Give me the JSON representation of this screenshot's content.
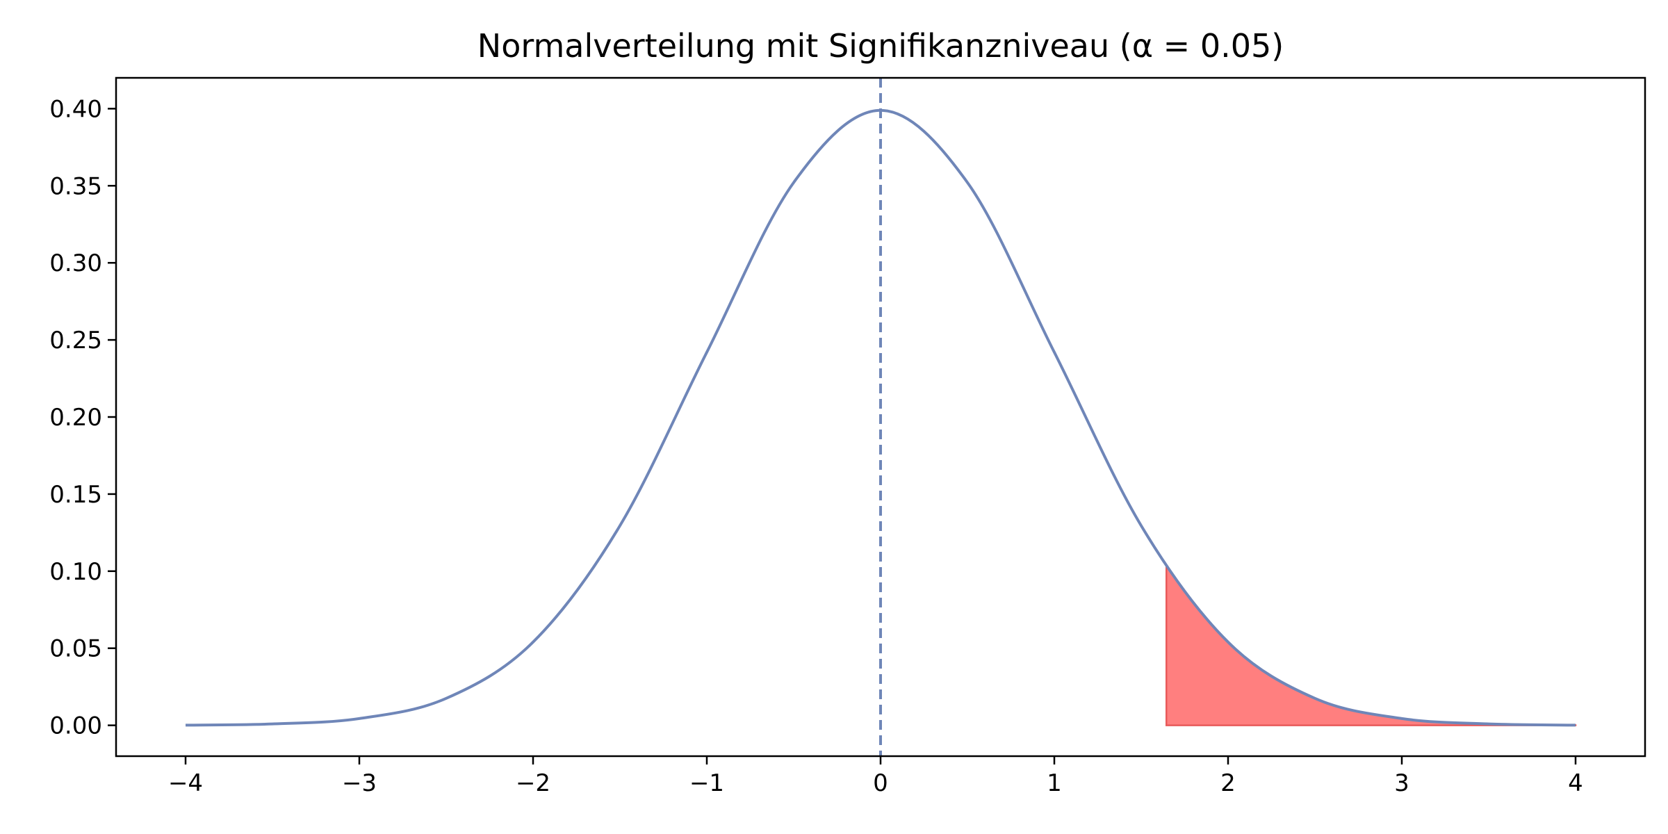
{
  "chart_data": {
    "type": "line",
    "title": "Normalverteilung mit Signifikanzniveau (α = 0.05)",
    "xlabel": "",
    "ylabel": "",
    "xlim": [
      -4.4,
      4.4
    ],
    "ylim": [
      -0.02,
      0.42
    ],
    "grid": false,
    "x_ticks": [
      -4,
      -3,
      -2,
      -1,
      0,
      1,
      2,
      3,
      4
    ],
    "x_tick_labels": [
      "−4",
      "−3",
      "−2",
      "−1",
      "0",
      "1",
      "2",
      "3",
      "4"
    ],
    "y_ticks": [
      0.0,
      0.05,
      0.1,
      0.15,
      0.2,
      0.25,
      0.3,
      0.35,
      0.4
    ],
    "y_tick_labels": [
      "0.00",
      "0.05",
      "0.10",
      "0.15",
      "0.20",
      "0.25",
      "0.30",
      "0.35",
      "0.40"
    ],
    "series": [
      {
        "x": [
          -4.0,
          -3.5,
          -3.0,
          -2.5,
          -2.0,
          -1.5,
          -1.0,
          -0.5,
          0.0,
          0.5,
          1.0,
          1.5,
          2.0,
          2.5,
          3.0,
          3.5,
          4.0
        ],
        "values": [
          0.0001,
          0.0009,
          0.0044,
          0.0175,
          0.054,
          0.1295,
          0.242,
          0.3521,
          0.3989,
          0.3521,
          0.242,
          0.1295,
          0.054,
          0.0175,
          0.0044,
          0.0009,
          0.0001
        ],
        "color": "#6f86b8"
      }
    ],
    "mean_line": {
      "x": 0,
      "color": "#6f86b8",
      "style": "dashed"
    },
    "rejection_region": {
      "from": 1.645,
      "to": 4.0,
      "color": "#ff7f7f",
      "edge_color": "#e85a5a"
    }
  }
}
